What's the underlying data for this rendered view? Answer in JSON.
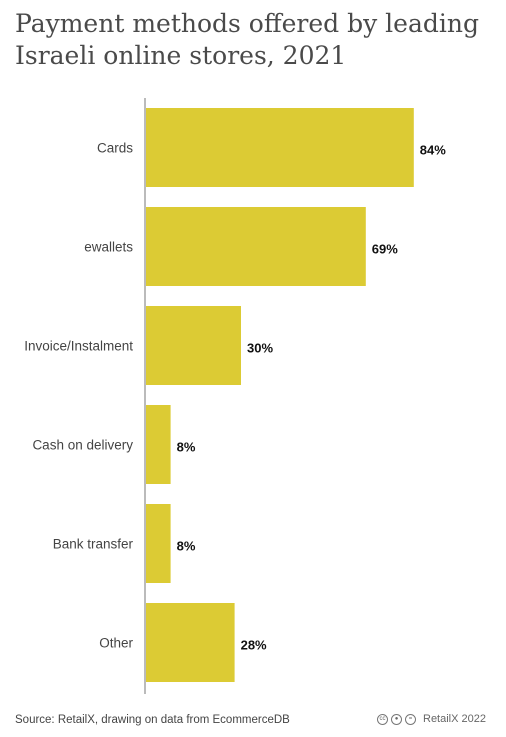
{
  "title": "Payment methods offered by leading Israeli online stores, 2021",
  "source": "Source: RetailX, drawing on data from EcommerceDB",
  "brand": "RetailX 2022",
  "icons": [
    "cc-icon",
    "by-icon",
    "equal-icon"
  ],
  "colors": {
    "bar": "#dccb34",
    "axis": "#bbbbbb"
  },
  "chart_data": {
    "type": "bar",
    "orientation": "horizontal",
    "categories": [
      "Cards",
      "ewallets",
      "Invoice/Instalment",
      "Cash on delivery",
      "Bank transfer",
      "Other"
    ],
    "values": [
      84,
      69,
      30,
      8,
      8,
      28
    ],
    "value_labels": [
      "84%",
      "69%",
      "30%",
      "8%",
      "8%",
      "28%"
    ],
    "unit": "%",
    "xlim": [
      0,
      100
    ],
    "grid": false,
    "legend": "none"
  }
}
